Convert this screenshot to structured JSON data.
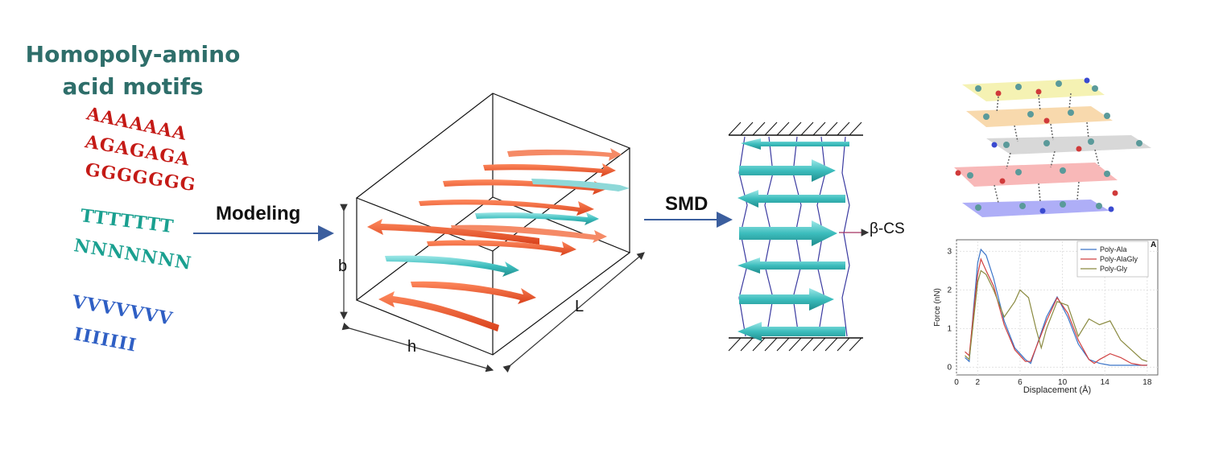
{
  "title": {
    "line1": "Homopoly-amino",
    "line2": "acid motifs"
  },
  "sequences": {
    "seq1": "AAAAAAA",
    "seq2": "AGAGAGA",
    "seq3": "GGGGGGG",
    "seq4": "TTTTTTT",
    "seq5": "NNNNNNN",
    "seq6": "VVVVVVV",
    "seq7": "IIIIIII"
  },
  "arrows": {
    "modeling": "Modeling",
    "smd": "SMD"
  },
  "box_labels": {
    "b": "b",
    "h": "h",
    "L": "L"
  },
  "smd_output": "β-CS",
  "colors": {
    "sheet_orange": "#f0532a",
    "sheet_teal": "#3cbdbd",
    "title": "#2e6e6a",
    "seq_red": "#c41a16",
    "seq_teal": "#1aa090",
    "seq_blue": "#2f5fc4"
  },
  "chart_data": {
    "type": "line",
    "panel_label": "A",
    "xlabel": "Displacement (Å)",
    "ylabel": "Force (nN)",
    "xlim": [
      0,
      19
    ],
    "ylim": [
      -0.2,
      3.3
    ],
    "xticks": [
      0,
      2,
      6,
      10,
      14,
      18
    ],
    "yticks": [
      0,
      1,
      2,
      3
    ],
    "grid": true,
    "legend_position": "top-right",
    "series": [
      {
        "name": "Poly-Ala",
        "color": "#3a74c8",
        "x": [
          0.8,
          1.2,
          1.6,
          2.0,
          2.3,
          2.8,
          3.5,
          4.5,
          5.5,
          6.5,
          7.0,
          7.5,
          8.5,
          9.5,
          10.5,
          11.5,
          12.5,
          13.5,
          14.5,
          15.5,
          16.5,
          17.5,
          18.0
        ],
        "y": [
          0.25,
          0.15,
          1.5,
          2.7,
          3.05,
          2.9,
          2.3,
          1.2,
          0.5,
          0.2,
          0.1,
          0.5,
          1.3,
          1.82,
          1.3,
          0.6,
          0.2,
          0.1,
          0.05,
          0.05,
          0.05,
          0.05,
          0.05
        ]
      },
      {
        "name": "Poly-AlaGly",
        "color": "#d04040",
        "x": [
          0.8,
          1.2,
          1.6,
          2.0,
          2.3,
          2.8,
          3.5,
          4.5,
          5.5,
          6.5,
          7.0,
          7.5,
          8.5,
          9.5,
          10.5,
          11.5,
          12.5,
          13.0,
          13.5,
          14.5,
          15.5,
          16.5,
          17.5,
          18.0
        ],
        "y": [
          0.4,
          0.3,
          1.4,
          2.4,
          2.8,
          2.5,
          2.1,
          1.1,
          0.45,
          0.15,
          0.15,
          0.5,
          1.2,
          1.8,
          1.4,
          0.7,
          0.2,
          0.1,
          0.2,
          0.35,
          0.25,
          0.1,
          0.05,
          0.05
        ]
      },
      {
        "name": "Poly-Gly",
        "color": "#8a8a40",
        "x": [
          0.8,
          1.2,
          1.6,
          2.0,
          2.3,
          2.8,
          3.5,
          4.5,
          5.5,
          6.0,
          6.8,
          7.5,
          8.0,
          8.5,
          9.5,
          10.5,
          11.5,
          12.5,
          13.5,
          14.5,
          15.5,
          16.5,
          17.5,
          18.0
        ],
        "y": [
          0.3,
          0.2,
          1.2,
          2.2,
          2.5,
          2.4,
          2.0,
          1.3,
          1.7,
          2.0,
          1.8,
          1.0,
          0.5,
          1.0,
          1.7,
          1.6,
          0.8,
          1.25,
          1.1,
          1.2,
          0.7,
          0.45,
          0.2,
          0.15
        ]
      }
    ]
  }
}
